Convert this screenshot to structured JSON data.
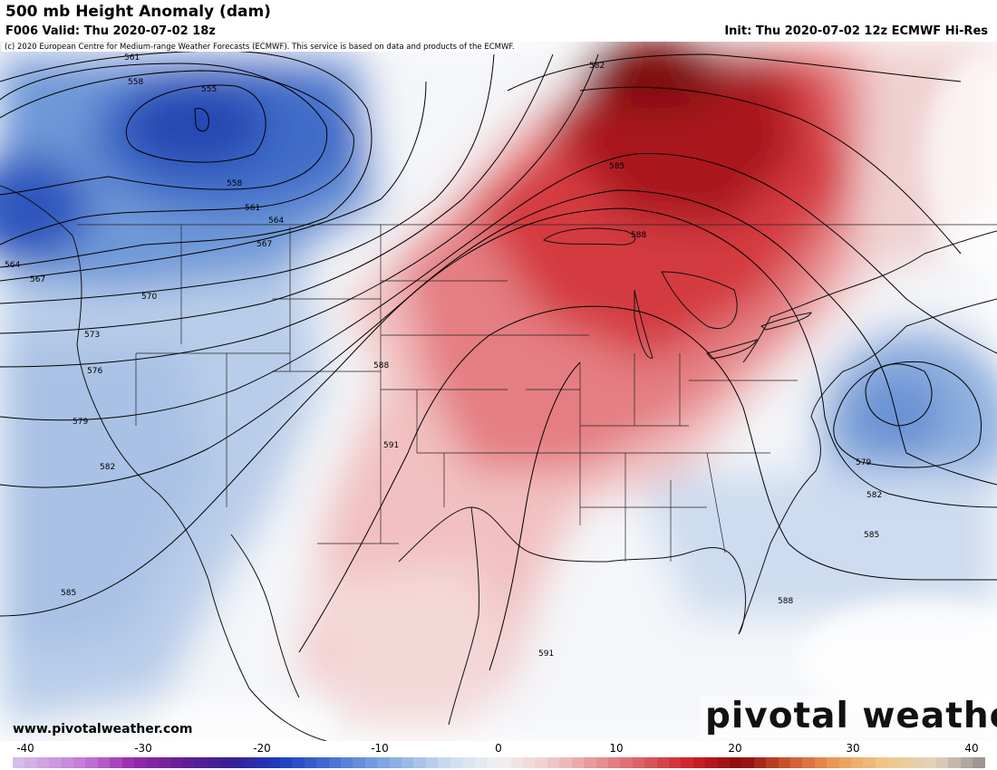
{
  "header": {
    "title": "500 mb Height Anomaly (dam)",
    "valid": "F006 Valid: Thu 2020-07-02 18z",
    "init": "Init: Thu 2020-07-02 12z ECMWF Hi-Res"
  },
  "copyright": "(c) 2020 European Centre for Medium-range Weather Forecasts (ECMWF). This service is based on data and products of the ECMWF.",
  "footer": {
    "website": "www.pivotalweather.com",
    "brand": "pivotal weather"
  },
  "colorbar": {
    "ticks": [
      "-40",
      "-30",
      "-20",
      "-10",
      "0",
      "10",
      "20",
      "30",
      "40"
    ]
  },
  "contour_labels": [
    {
      "text": "561"
    },
    {
      "text": "558"
    },
    {
      "text": "555"
    },
    {
      "text": "558"
    },
    {
      "text": "561"
    },
    {
      "text": "564"
    },
    {
      "text": "567"
    },
    {
      "text": "564"
    },
    {
      "text": "567"
    },
    {
      "text": "570"
    },
    {
      "text": "573"
    },
    {
      "text": "576"
    },
    {
      "text": "579"
    },
    {
      "text": "582"
    },
    {
      "text": "585"
    },
    {
      "text": "582"
    },
    {
      "text": "585"
    },
    {
      "text": "588"
    },
    {
      "text": "588"
    },
    {
      "text": "591"
    },
    {
      "text": "591"
    },
    {
      "text": "579"
    },
    {
      "text": "582"
    },
    {
      "text": "585"
    },
    {
      "text": "588"
    }
  ],
  "colors": {
    "neg_strong": "#1f3fb8",
    "neg_mid": "#6f9ad6",
    "neg_light": "#d6e2f1",
    "pos_light": "#f6d6d6",
    "pos_mid": "#e0555d",
    "pos_strong": "#8c0c0c"
  }
}
